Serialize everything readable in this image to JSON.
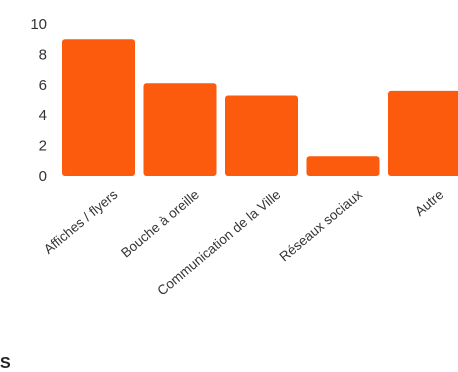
{
  "chart_data": {
    "type": "bar",
    "categories": [
      "Affiches / flyers",
      "Bouche à oreille",
      "Communication de la Ville",
      "Réseaux sociaux",
      "Autre"
    ],
    "values": [
      9,
      6.1,
      5.3,
      1.3,
      5.6
    ],
    "yticks": [
      "0",
      "2",
      "4",
      "6",
      "8",
      "10"
    ],
    "ylim": [
      0,
      10
    ],
    "bar_color": "#fc5a0c",
    "grid": false,
    "legend": "none"
  },
  "fragment_text": "S"
}
